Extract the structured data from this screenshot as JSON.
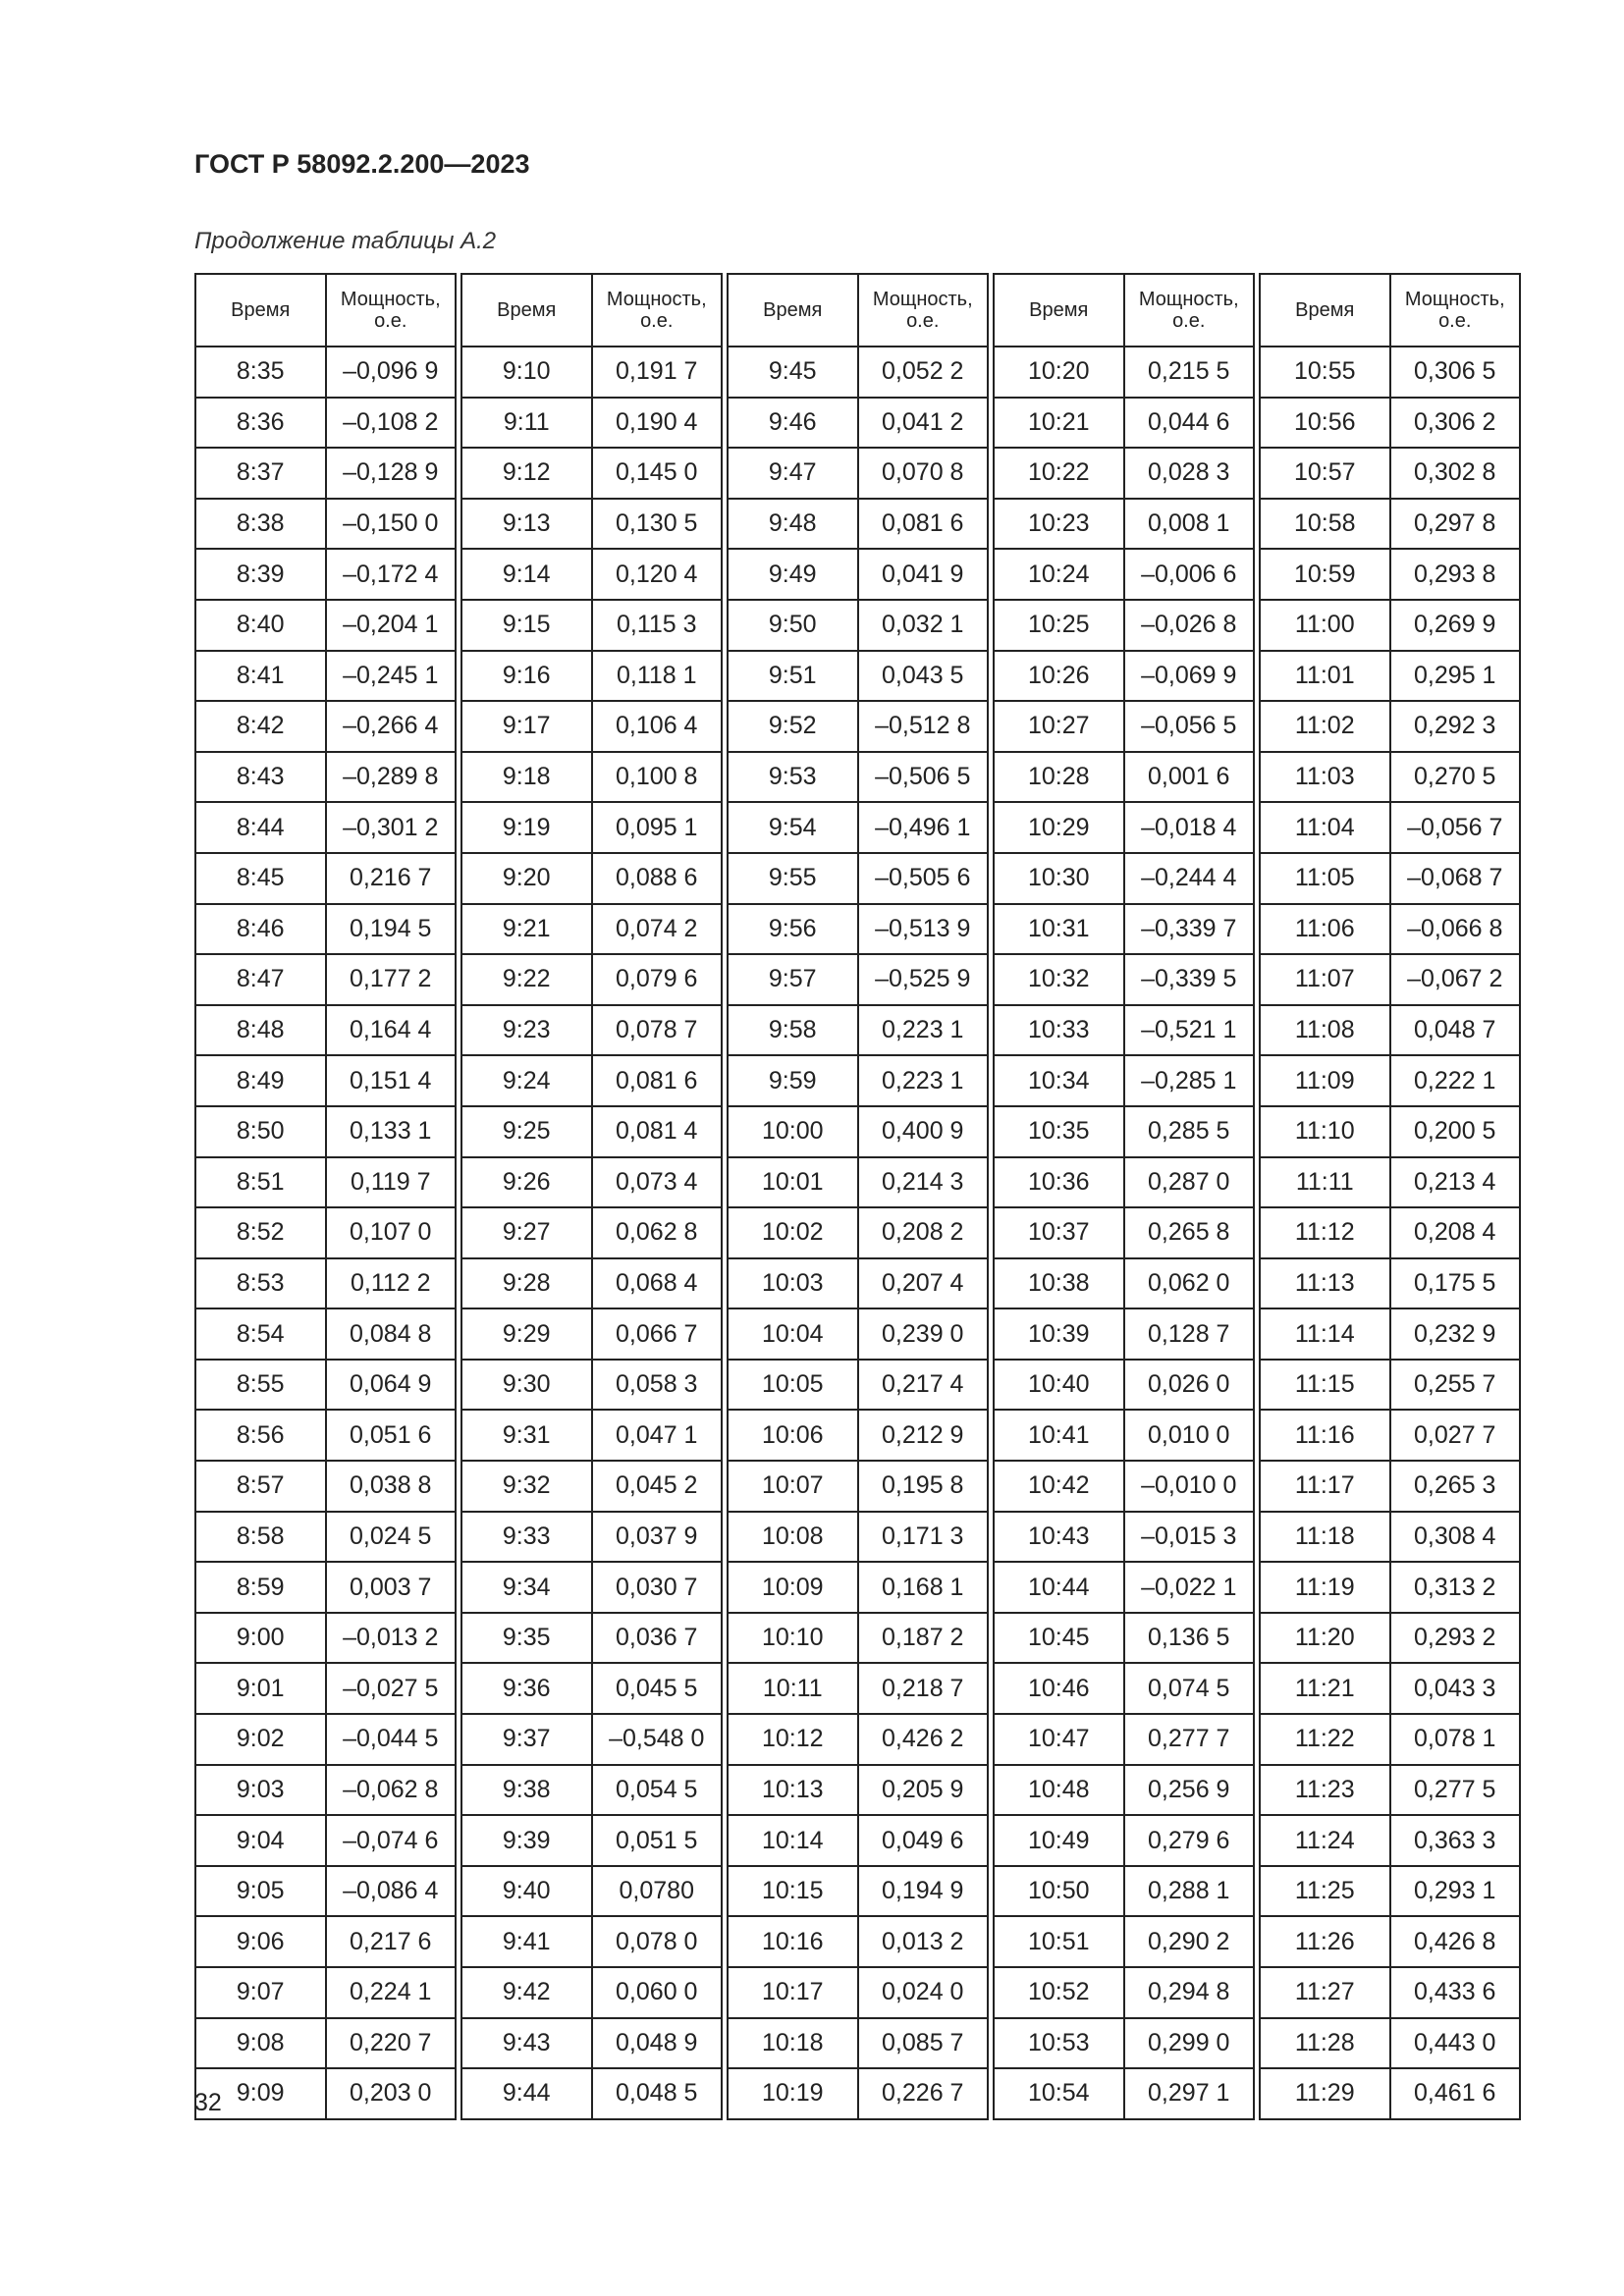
{
  "document_code": "ГОСТ Р 58092.2.200—2023",
  "caption": "Продолжение таблицы А.2",
  "headers": {
    "time": "Время",
    "power": "Мощность, о.е."
  },
  "groups": [
    [
      [
        "8:35",
        "–0,096 9"
      ],
      [
        "8:36",
        "–0,108 2"
      ],
      [
        "8:37",
        "–0,128 9"
      ],
      [
        "8:38",
        "–0,150 0"
      ],
      [
        "8:39",
        "–0,172 4"
      ],
      [
        "8:40",
        "–0,204 1"
      ],
      [
        "8:41",
        "–0,245 1"
      ],
      [
        "8:42",
        "–0,266 4"
      ],
      [
        "8:43",
        "–0,289 8"
      ],
      [
        "8:44",
        "–0,301 2"
      ],
      [
        "8:45",
        "0,216 7"
      ],
      [
        "8:46",
        "0,194 5"
      ],
      [
        "8:47",
        "0,177 2"
      ],
      [
        "8:48",
        "0,164 4"
      ],
      [
        "8:49",
        "0,151 4"
      ],
      [
        "8:50",
        "0,133 1"
      ],
      [
        "8:51",
        "0,119 7"
      ],
      [
        "8:52",
        "0,107 0"
      ],
      [
        "8:53",
        "0,112 2"
      ],
      [
        "8:54",
        "0,084 8"
      ],
      [
        "8:55",
        "0,064 9"
      ],
      [
        "8:56",
        "0,051 6"
      ],
      [
        "8:57",
        "0,038 8"
      ],
      [
        "8:58",
        "0,024 5"
      ],
      [
        "8:59",
        "0,003 7"
      ],
      [
        "9:00",
        "–0,013 2"
      ],
      [
        "9:01",
        "–0,027 5"
      ],
      [
        "9:02",
        "–0,044 5"
      ],
      [
        "9:03",
        "–0,062 8"
      ],
      [
        "9:04",
        "–0,074 6"
      ],
      [
        "9:05",
        "–0,086 4"
      ],
      [
        "9:06",
        "0,217 6"
      ],
      [
        "9:07",
        "0,224 1"
      ],
      [
        "9:08",
        "0,220 7"
      ],
      [
        "9:09",
        "0,203 0"
      ]
    ],
    [
      [
        "9:10",
        "0,191 7"
      ],
      [
        "9:11",
        "0,190 4"
      ],
      [
        "9:12",
        "0,145 0"
      ],
      [
        "9:13",
        "0,130 5"
      ],
      [
        "9:14",
        "0,120 4"
      ],
      [
        "9:15",
        "0,115 3"
      ],
      [
        "9:16",
        "0,118 1"
      ],
      [
        "9:17",
        "0,106 4"
      ],
      [
        "9:18",
        "0,100 8"
      ],
      [
        "9:19",
        "0,095 1"
      ],
      [
        "9:20",
        "0,088 6"
      ],
      [
        "9:21",
        "0,074 2"
      ],
      [
        "9:22",
        "0,079 6"
      ],
      [
        "9:23",
        "0,078 7"
      ],
      [
        "9:24",
        "0,081 6"
      ],
      [
        "9:25",
        "0,081 4"
      ],
      [
        "9:26",
        "0,073 4"
      ],
      [
        "9:27",
        "0,062 8"
      ],
      [
        "9:28",
        "0,068 4"
      ],
      [
        "9:29",
        "0,066 7"
      ],
      [
        "9:30",
        "0,058 3"
      ],
      [
        "9:31",
        "0,047 1"
      ],
      [
        "9:32",
        "0,045 2"
      ],
      [
        "9:33",
        "0,037 9"
      ],
      [
        "9:34",
        "0,030 7"
      ],
      [
        "9:35",
        "0,036 7"
      ],
      [
        "9:36",
        "0,045 5"
      ],
      [
        "9:37",
        "–0,548 0"
      ],
      [
        "9:38",
        "0,054 5"
      ],
      [
        "9:39",
        "0,051 5"
      ],
      [
        "9:40",
        "0,0780"
      ],
      [
        "9:41",
        "0,078 0"
      ],
      [
        "9:42",
        "0,060 0"
      ],
      [
        "9:43",
        "0,048 9"
      ],
      [
        "9:44",
        "0,048 5"
      ]
    ],
    [
      [
        "9:45",
        "0,052 2"
      ],
      [
        "9:46",
        "0,041 2"
      ],
      [
        "9:47",
        "0,070 8"
      ],
      [
        "9:48",
        "0,081 6"
      ],
      [
        "9:49",
        "0,041 9"
      ],
      [
        "9:50",
        "0,032 1"
      ],
      [
        "9:51",
        "0,043 5"
      ],
      [
        "9:52",
        "–0,512 8"
      ],
      [
        "9:53",
        "–0,506 5"
      ],
      [
        "9:54",
        "–0,496 1"
      ],
      [
        "9:55",
        "–0,505 6"
      ],
      [
        "9:56",
        "–0,513 9"
      ],
      [
        "9:57",
        "–0,525 9"
      ],
      [
        "9:58",
        "0,223 1"
      ],
      [
        "9:59",
        "0,223 1"
      ],
      [
        "10:00",
        "0,400 9"
      ],
      [
        "10:01",
        "0,214 3"
      ],
      [
        "10:02",
        "0,208 2"
      ],
      [
        "10:03",
        "0,207 4"
      ],
      [
        "10:04",
        "0,239 0"
      ],
      [
        "10:05",
        "0,217 4"
      ],
      [
        "10:06",
        "0,212 9"
      ],
      [
        "10:07",
        "0,195 8"
      ],
      [
        "10:08",
        "0,171 3"
      ],
      [
        "10:09",
        "0,168 1"
      ],
      [
        "10:10",
        "0,187 2"
      ],
      [
        "10:11",
        "0,218 7"
      ],
      [
        "10:12",
        "0,426 2"
      ],
      [
        "10:13",
        "0,205 9"
      ],
      [
        "10:14",
        "0,049 6"
      ],
      [
        "10:15",
        "0,194 9"
      ],
      [
        "10:16",
        "0,013 2"
      ],
      [
        "10:17",
        "0,024 0"
      ],
      [
        "10:18",
        "0,085 7"
      ],
      [
        "10:19",
        "0,226 7"
      ]
    ],
    [
      [
        "10:20",
        "0,215 5"
      ],
      [
        "10:21",
        "0,044 6"
      ],
      [
        "10:22",
        "0,028 3"
      ],
      [
        "10:23",
        "0,008 1"
      ],
      [
        "10:24",
        "–0,006 6"
      ],
      [
        "10:25",
        "–0,026 8"
      ],
      [
        "10:26",
        "–0,069 9"
      ],
      [
        "10:27",
        "–0,056 5"
      ],
      [
        "10:28",
        "0,001 6"
      ],
      [
        "10:29",
        "–0,018 4"
      ],
      [
        "10:30",
        "–0,244 4"
      ],
      [
        "10:31",
        "–0,339 7"
      ],
      [
        "10:32",
        "–0,339 5"
      ],
      [
        "10:33",
        "–0,521 1"
      ],
      [
        "10:34",
        "–0,285 1"
      ],
      [
        "10:35",
        "0,285 5"
      ],
      [
        "10:36",
        "0,287 0"
      ],
      [
        "10:37",
        "0,265 8"
      ],
      [
        "10:38",
        "0,062 0"
      ],
      [
        "10:39",
        "0,128 7"
      ],
      [
        "10:40",
        "0,026 0"
      ],
      [
        "10:41",
        "0,010 0"
      ],
      [
        "10:42",
        "–0,010 0"
      ],
      [
        "10:43",
        "–0,015 3"
      ],
      [
        "10:44",
        "–0,022 1"
      ],
      [
        "10:45",
        "0,136 5"
      ],
      [
        "10:46",
        "0,074 5"
      ],
      [
        "10:47",
        "0,277 7"
      ],
      [
        "10:48",
        "0,256 9"
      ],
      [
        "10:49",
        "0,279 6"
      ],
      [
        "10:50",
        "0,288 1"
      ],
      [
        "10:51",
        "0,290 2"
      ],
      [
        "10:52",
        "0,294 8"
      ],
      [
        "10:53",
        "0,299 0"
      ],
      [
        "10:54",
        "0,297 1"
      ]
    ],
    [
      [
        "10:55",
        "0,306 5"
      ],
      [
        "10:56",
        "0,306 2"
      ],
      [
        "10:57",
        "0,302 8"
      ],
      [
        "10:58",
        "0,297 8"
      ],
      [
        "10:59",
        "0,293 8"
      ],
      [
        "11:00",
        "0,269 9"
      ],
      [
        "11:01",
        "0,295 1"
      ],
      [
        "11:02",
        "0,292 3"
      ],
      [
        "11:03",
        "0,270 5"
      ],
      [
        "11:04",
        "–0,056 7"
      ],
      [
        "11:05",
        "–0,068 7"
      ],
      [
        "11:06",
        "–0,066 8"
      ],
      [
        "11:07",
        "–0,067 2"
      ],
      [
        "11:08",
        "0,048 7"
      ],
      [
        "11:09",
        "0,222 1"
      ],
      [
        "11:10",
        "0,200 5"
      ],
      [
        "11:11",
        "0,213 4"
      ],
      [
        "11:12",
        "0,208 4"
      ],
      [
        "11:13",
        "0,175 5"
      ],
      [
        "11:14",
        "0,232 9"
      ],
      [
        "11:15",
        "0,255 7"
      ],
      [
        "11:16",
        "0,027 7"
      ],
      [
        "11:17",
        "0,265 3"
      ],
      [
        "11:18",
        "0,308 4"
      ],
      [
        "11:19",
        "0,313 2"
      ],
      [
        "11:20",
        "0,293 2"
      ],
      [
        "11:21",
        "0,043 3"
      ],
      [
        "11:22",
        "0,078 1"
      ],
      [
        "11:23",
        "0,277 5"
      ],
      [
        "11:24",
        "0,363 3"
      ],
      [
        "11:25",
        "0,293 1"
      ],
      [
        "11:26",
        "0,426 8"
      ],
      [
        "11:27",
        "0,433 6"
      ],
      [
        "11:28",
        "0,443 0"
      ],
      [
        "11:29",
        "0,461 6"
      ]
    ]
  ],
  "page_number": "32"
}
